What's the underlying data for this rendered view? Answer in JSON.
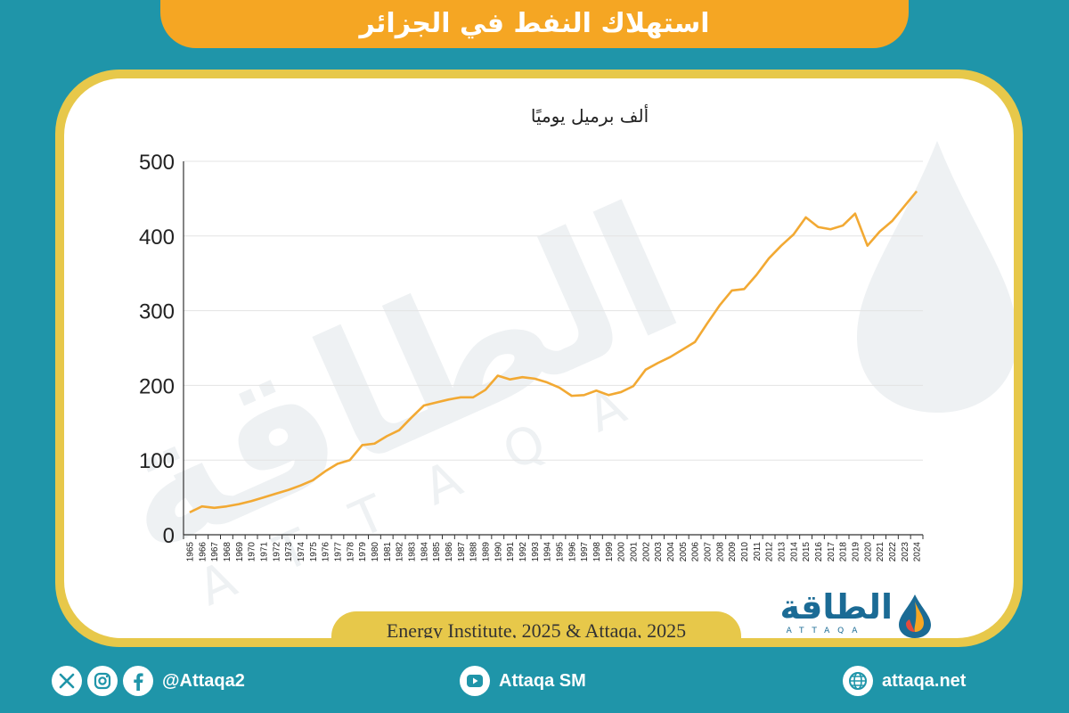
{
  "header": {
    "title": "استهلاك النفط في الجزائر"
  },
  "chart": {
    "unit_label": "ألف برميل يوميًا",
    "source": "Energy Institute, 2025 & Attaqa, 2025"
  },
  "logo": {
    "arabic": "الطاقة",
    "latin": "ATTAQA"
  },
  "footer": {
    "social_handle": "@Attaqa2",
    "youtube": "Attaqa SM",
    "website": "attaqa.net"
  },
  "colors": {
    "background": "#1f95a9",
    "banner": "#f5a623",
    "frame": "#e7c84a",
    "line": "#f2a933"
  },
  "chart_data": {
    "type": "line",
    "title": "",
    "xlabel": "",
    "ylabel": "ألف برميل يوميًا",
    "ylim": [
      0,
      500
    ],
    "yticks": [
      0,
      100,
      200,
      300,
      400,
      500
    ],
    "grid": true,
    "x": [
      "1965",
      "1966",
      "1967",
      "1968",
      "1969",
      "1970",
      "1971",
      "1972",
      "1973",
      "1974",
      "1975",
      "1976",
      "1977",
      "1978",
      "1979",
      "1980",
      "1981",
      "1982",
      "1983",
      "1984",
      "1985",
      "1986",
      "1987",
      "1988",
      "1989",
      "1990",
      "1991",
      "1992",
      "1993",
      "1994",
      "1995",
      "1996",
      "1997",
      "1998",
      "1999",
      "2000",
      "2001",
      "2002",
      "2003",
      "2004",
      "2005",
      "2006",
      "2007",
      "2008",
      "2009",
      "2010",
      "2011",
      "2012",
      "2013",
      "2014",
      "2015",
      "2016",
      "2017",
      "2018",
      "2019",
      "2020",
      "2021",
      "2022",
      "2023",
      "2024"
    ],
    "series": [
      {
        "values": [
          30,
          38,
          36,
          38,
          41,
          45,
          50,
          55,
          60,
          66,
          73,
          85,
          95,
          100,
          120,
          122,
          132,
          140,
          157,
          173,
          177,
          181,
          184,
          184,
          194,
          213,
          208,
          211,
          209,
          204,
          197,
          186,
          187,
          193,
          187,
          191,
          199,
          221,
          230,
          238,
          248,
          258,
          283,
          307,
          327,
          329,
          348,
          370,
          387,
          402,
          425,
          412,
          409,
          414,
          430,
          387,
          406,
          420,
          440,
          460
        ]
      }
    ]
  }
}
